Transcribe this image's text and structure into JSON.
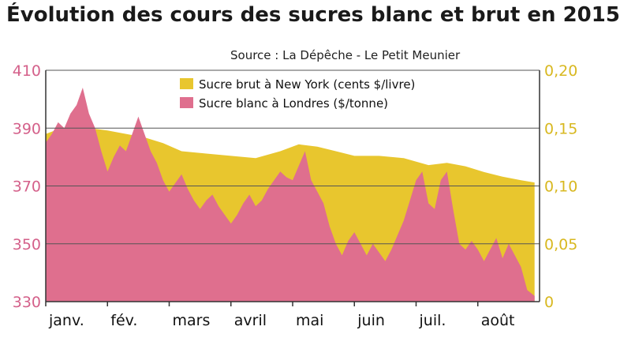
{
  "title": "Évolution des cours des sucres blanc et brut en 2015",
  "source": "Source : La Dépêche - Le Petit Meunier",
  "colors": {
    "brut": "#e8c62e",
    "blanc": "#df6f8e",
    "left_axis_text": "#d4608a",
    "right_axis_text": "#d8b820",
    "grid": "#555555"
  },
  "chart_data": {
    "type": "area",
    "title": "Évolution des cours des sucres blanc et brut en 2015",
    "months": [
      "janv.",
      "fév.",
      "mars",
      "avril",
      "mai",
      "juin",
      "juil.",
      "août"
    ],
    "left_axis": {
      "ticks": [
        "410",
        "390",
        "370",
        "350",
        "330"
      ],
      "ylim": [
        330,
        410
      ],
      "unit": "$/tonne"
    },
    "right_axis": {
      "ticks": [
        "0,20",
        "0,15",
        "0,10",
        "0,05",
        "0"
      ],
      "ylim": [
        0,
        0.2
      ],
      "unit": "cents $/livre"
    },
    "legend": [
      "Sucre brut à New York (cents $/livre)",
      "Sucre blanc à Londres ($/tonne)"
    ],
    "x_domain": [
      0,
      8
    ],
    "series": [
      {
        "name": "Sucre brut à New York (cents $/livre)",
        "axis": "right",
        "color": "#e8c62e",
        "x": [
          0,
          0.15,
          0.4,
          0.7,
          1.0,
          1.3,
          1.6,
          1.9,
          2.2,
          2.6,
          3.0,
          3.4,
          3.8,
          4.1,
          4.4,
          4.7,
          5.0,
          5.4,
          5.8,
          6.2,
          6.5,
          6.8,
          7.1,
          7.4,
          7.7,
          7.92
        ],
        "values": [
          0.145,
          0.148,
          0.152,
          0.15,
          0.148,
          0.145,
          0.142,
          0.137,
          0.13,
          0.128,
          0.126,
          0.124,
          0.13,
          0.136,
          0.134,
          0.13,
          0.126,
          0.126,
          0.124,
          0.118,
          0.12,
          0.117,
          0.112,
          0.108,
          0.105,
          0.103
        ]
      },
      {
        "name": "Sucre blanc à Londres ($/tonne)",
        "axis": "left",
        "color": "#df6f8e",
        "x": [
          0,
          0.1,
          0.2,
          0.3,
          0.4,
          0.5,
          0.6,
          0.7,
          0.8,
          0.9,
          1.0,
          1.1,
          1.2,
          1.3,
          1.4,
          1.5,
          1.6,
          1.7,
          1.8,
          1.9,
          2.0,
          2.1,
          2.2,
          2.3,
          2.4,
          2.5,
          2.6,
          2.7,
          2.8,
          2.9,
          3.0,
          3.1,
          3.2,
          3.3,
          3.4,
          3.5,
          3.6,
          3.7,
          3.8,
          3.9,
          4.0,
          4.1,
          4.2,
          4.3,
          4.4,
          4.5,
          4.6,
          4.7,
          4.8,
          4.9,
          5.0,
          5.1,
          5.2,
          5.3,
          5.4,
          5.5,
          5.6,
          5.7,
          5.8,
          5.9,
          6.0,
          6.1,
          6.2,
          6.3,
          6.4,
          6.5,
          6.6,
          6.7,
          6.8,
          6.9,
          7.0,
          7.1,
          7.2,
          7.3,
          7.4,
          7.5,
          7.6,
          7.7,
          7.8,
          7.92
        ],
        "values": [
          385,
          388,
          392,
          390,
          395,
          398,
          404,
          395,
          390,
          382,
          375,
          380,
          384,
          382,
          388,
          394,
          388,
          382,
          378,
          372,
          368,
          371,
          374,
          369,
          365,
          362,
          365,
          367,
          363,
          360,
          357,
          360,
          364,
          367,
          363,
          365,
          369,
          372,
          375,
          373,
          372,
          377,
          382,
          372,
          368,
          364,
          356,
          350,
          346,
          351,
          354,
          350,
          346,
          350,
          347,
          344,
          348,
          353,
          358,
          365,
          372,
          375,
          364,
          362,
          372,
          375,
          362,
          350,
          348,
          351,
          348,
          344,
          348,
          352,
          345,
          350,
          346,
          342,
          334,
          332
        ]
      }
    ]
  }
}
